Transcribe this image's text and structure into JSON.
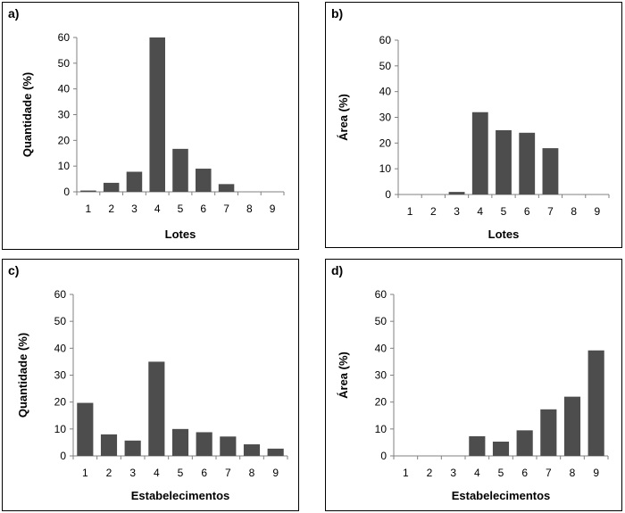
{
  "chart_data": [
    {
      "panel_label": "a)",
      "type": "bar",
      "categories": [
        "1",
        "2",
        "3",
        "4",
        "5",
        "6",
        "7",
        "8",
        "9"
      ],
      "values": [
        0.5,
        3.5,
        7.8,
        60,
        16.7,
        9,
        3,
        0,
        0
      ],
      "xlabel": "Lotes",
      "ylabel": "Quantidade  (%)",
      "ylim": [
        0,
        60
      ],
      "yticks": [
        "0",
        "10",
        "20",
        "30",
        "40",
        "50",
        "60"
      ],
      "bar_color": "#4d4d4d",
      "grid": false
    },
    {
      "panel_label": "b)",
      "type": "bar",
      "categories": [
        "1",
        "2",
        "3",
        "4",
        "5",
        "6",
        "7",
        "8",
        "9"
      ],
      "values": [
        0,
        0,
        1,
        32,
        25,
        24,
        18,
        0,
        0
      ],
      "xlabel": "Lotes",
      "ylabel": "Área (%)",
      "ylim": [
        0,
        60
      ],
      "yticks": [
        "0",
        "10",
        "20",
        "30",
        "40",
        "50",
        "60"
      ],
      "bar_color": "#4d4d4d",
      "grid": false
    },
    {
      "panel_label": "c)",
      "type": "bar",
      "categories": [
        "1",
        "2",
        "3",
        "4",
        "5",
        "6",
        "7",
        "8",
        "9"
      ],
      "values": [
        19.7,
        8,
        5.7,
        35,
        10,
        8.8,
        7.2,
        4.3,
        2.7
      ],
      "xlabel": "Estabelecimentos",
      "ylabel": "Quantidade  (%)",
      "ylim": [
        0,
        60
      ],
      "yticks": [
        "0",
        "10",
        "20",
        "30",
        "40",
        "50",
        "60"
      ],
      "bar_color": "#4d4d4d",
      "grid": false
    },
    {
      "panel_label": "d)",
      "type": "bar",
      "categories": [
        "1",
        "2",
        "3",
        "4",
        "5",
        "6",
        "7",
        "8",
        "9"
      ],
      "values": [
        0,
        0,
        0,
        7.3,
        5.3,
        9.5,
        17.3,
        22,
        39.2
      ],
      "xlabel": "Estabelecimentos",
      "ylabel": "Área (%)",
      "ylim": [
        0,
        60
      ],
      "yticks": [
        "0",
        "10",
        "20",
        "30",
        "40",
        "50",
        "60"
      ],
      "bar_color": "#4d4d4d",
      "grid": false
    }
  ]
}
